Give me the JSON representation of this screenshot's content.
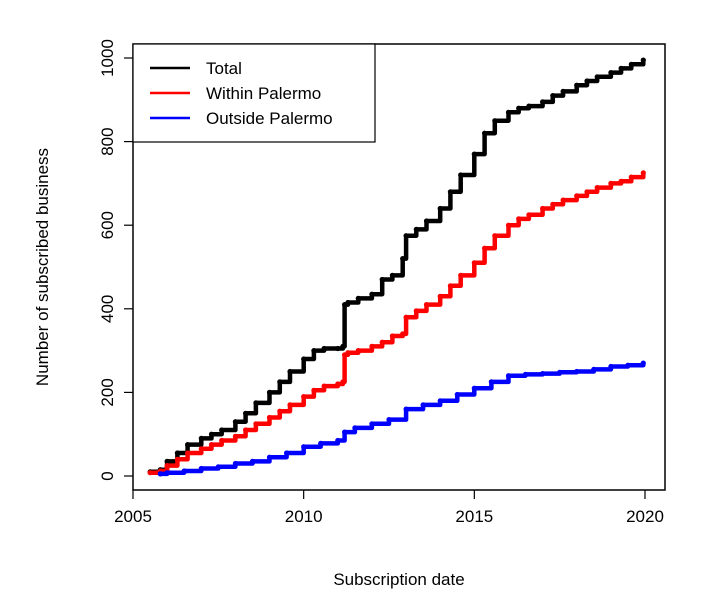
{
  "chart_data": {
    "type": "line",
    "title": "",
    "xlabel": "Subscription date",
    "ylabel": "Number of subscribed business",
    "xlim": [
      2005,
      2020
    ],
    "ylim": [
      0,
      1000
    ],
    "x_ticks": [
      2005,
      2010,
      2015,
      2020
    ],
    "y_ticks": [
      0,
      200,
      400,
      600,
      800,
      1000
    ],
    "grid": false,
    "legend_position": "top-left",
    "series": [
      {
        "name": "Total",
        "color": "#000000",
        "x": [
          2005.5,
          2005.8,
          2006.0,
          2006.3,
          2006.6,
          2007.0,
          2007.3,
          2007.6,
          2008.0,
          2008.3,
          2008.6,
          2009.0,
          2009.3,
          2009.6,
          2010.0,
          2010.3,
          2010.6,
          2011.0,
          2011.15,
          2011.2,
          2011.3,
          2011.6,
          2012.0,
          2012.3,
          2012.6,
          2012.9,
          2013.0,
          2013.3,
          2013.6,
          2014.0,
          2014.3,
          2014.6,
          2015.0,
          2015.3,
          2015.6,
          2016.0,
          2016.3,
          2016.6,
          2017.0,
          2017.3,
          2017.6,
          2018.0,
          2018.3,
          2018.6,
          2019.0,
          2019.3,
          2019.6,
          2019.95
        ],
        "values": [
          10,
          15,
          35,
          55,
          75,
          90,
          100,
          110,
          130,
          150,
          175,
          200,
          225,
          250,
          280,
          300,
          305,
          305,
          310,
          410,
          415,
          425,
          435,
          470,
          480,
          520,
          575,
          590,
          610,
          640,
          680,
          720,
          770,
          820,
          850,
          870,
          880,
          885,
          895,
          910,
          920,
          935,
          945,
          955,
          965,
          975,
          985,
          995
        ]
      },
      {
        "name": "Within Palermo",
        "color": "#ff0000",
        "x": [
          2005.5,
          2005.8,
          2006.0,
          2006.3,
          2006.6,
          2007.0,
          2007.3,
          2007.6,
          2008.0,
          2008.3,
          2008.6,
          2009.0,
          2009.3,
          2009.6,
          2010.0,
          2010.3,
          2010.6,
          2011.0,
          2011.15,
          2011.2,
          2011.3,
          2011.6,
          2012.0,
          2012.3,
          2012.6,
          2012.9,
          2013.0,
          2013.3,
          2013.6,
          2014.0,
          2014.3,
          2014.6,
          2015.0,
          2015.3,
          2015.6,
          2016.0,
          2016.3,
          2016.6,
          2017.0,
          2017.3,
          2017.6,
          2018.0,
          2018.3,
          2018.6,
          2019.0,
          2019.3,
          2019.6,
          2019.95
        ],
        "values": [
          8,
          12,
          25,
          40,
          55,
          65,
          75,
          85,
          95,
          110,
          125,
          140,
          155,
          170,
          190,
          205,
          215,
          220,
          225,
          290,
          295,
          300,
          310,
          320,
          335,
          340,
          380,
          395,
          410,
          430,
          455,
          480,
          510,
          545,
          575,
          600,
          615,
          625,
          640,
          650,
          660,
          670,
          680,
          690,
          700,
          705,
          715,
          725
        ]
      },
      {
        "name": "Outside Palermo",
        "color": "#0000ff",
        "x": [
          2005.8,
          2006.0,
          2006.5,
          2007.0,
          2007.5,
          2008.0,
          2008.5,
          2009.0,
          2009.5,
          2010.0,
          2010.5,
          2011.0,
          2011.2,
          2011.5,
          2012.0,
          2012.5,
          2013.0,
          2013.5,
          2014.0,
          2014.5,
          2015.0,
          2015.5,
          2016.0,
          2016.5,
          2017.0,
          2017.5,
          2018.0,
          2018.5,
          2019.0,
          2019.5,
          2019.95
        ],
        "values": [
          5,
          8,
          12,
          18,
          22,
          30,
          35,
          45,
          55,
          70,
          78,
          85,
          105,
          115,
          125,
          135,
          160,
          170,
          180,
          195,
          210,
          225,
          240,
          243,
          245,
          248,
          250,
          255,
          262,
          265,
          270
        ]
      }
    ]
  }
}
